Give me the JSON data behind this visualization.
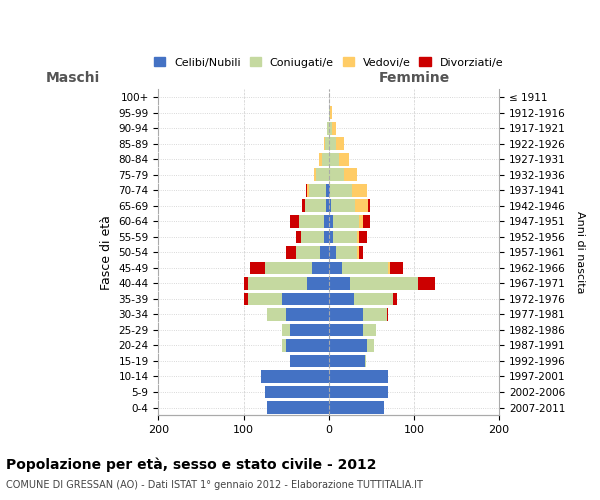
{
  "age_groups": [
    "0-4",
    "5-9",
    "10-14",
    "15-19",
    "20-24",
    "25-29",
    "30-34",
    "35-39",
    "40-44",
    "45-49",
    "50-54",
    "55-59",
    "60-64",
    "65-69",
    "70-74",
    "75-79",
    "80-84",
    "85-89",
    "90-94",
    "95-99",
    "100+"
  ],
  "birth_years": [
    "2007-2011",
    "2002-2006",
    "1997-2001",
    "1992-1996",
    "1987-1991",
    "1982-1986",
    "1977-1981",
    "1972-1976",
    "1967-1971",
    "1962-1966",
    "1957-1961",
    "1952-1956",
    "1947-1951",
    "1942-1946",
    "1937-1941",
    "1932-1936",
    "1927-1931",
    "1922-1926",
    "1917-1921",
    "1912-1916",
    "≤ 1911"
  ],
  "males": {
    "celibi": [
      72,
      75,
      80,
      45,
      50,
      45,
      50,
      55,
      25,
      20,
      10,
      5,
      5,
      3,
      3,
      0,
      0,
      0,
      0,
      0,
      0
    ],
    "coniugati": [
      0,
      0,
      0,
      0,
      5,
      10,
      22,
      40,
      70,
      55,
      28,
      28,
      30,
      25,
      20,
      15,
      8,
      4,
      2,
      0,
      0
    ],
    "vedovi": [
      0,
      0,
      0,
      0,
      0,
      0,
      0,
      0,
      0,
      0,
      0,
      0,
      0,
      0,
      2,
      2,
      3,
      2,
      0,
      0,
      0
    ],
    "divorziati": [
      0,
      0,
      0,
      0,
      0,
      0,
      0,
      5,
      5,
      18,
      12,
      5,
      10,
      3,
      2,
      0,
      0,
      0,
      0,
      0,
      0
    ]
  },
  "females": {
    "nubili": [
      65,
      70,
      70,
      42,
      45,
      40,
      40,
      30,
      25,
      15,
      8,
      5,
      5,
      3,
      2,
      0,
      0,
      0,
      0,
      0,
      0
    ],
    "coniugate": [
      0,
      0,
      0,
      2,
      8,
      15,
      28,
      45,
      80,
      55,
      25,
      28,
      30,
      28,
      25,
      18,
      12,
      8,
      4,
      2,
      0
    ],
    "vedove": [
      0,
      0,
      0,
      0,
      0,
      0,
      0,
      0,
      0,
      2,
      2,
      2,
      5,
      15,
      18,
      15,
      12,
      10,
      5,
      2,
      0
    ],
    "divorziate": [
      0,
      0,
      0,
      0,
      0,
      0,
      2,
      5,
      20,
      15,
      5,
      10,
      8,
      3,
      0,
      0,
      0,
      0,
      0,
      0,
      0
    ]
  },
  "colors": {
    "celibi": "#4472C4",
    "coniugati": "#C5D9A0",
    "vedovi": "#FFCC66",
    "divorziati": "#CC0000"
  },
  "title": "Popolazione per età, sesso e stato civile - 2012",
  "subtitle": "COMUNE DI GRESSAN (AO) - Dati ISTAT 1° gennaio 2012 - Elaborazione TUTTITALIA.IT",
  "xlabel_left": "Maschi",
  "xlabel_right": "Femmine",
  "ylabel": "Fasce di età",
  "ylabel_right": "Anni di nascita",
  "xlim": 200,
  "legend_labels": [
    "Celibi/Nubili",
    "Coniugati/e",
    "Vedovi/e",
    "Divorziati/e"
  ],
  "background_color": "#ffffff",
  "grid_color": "#cccccc"
}
